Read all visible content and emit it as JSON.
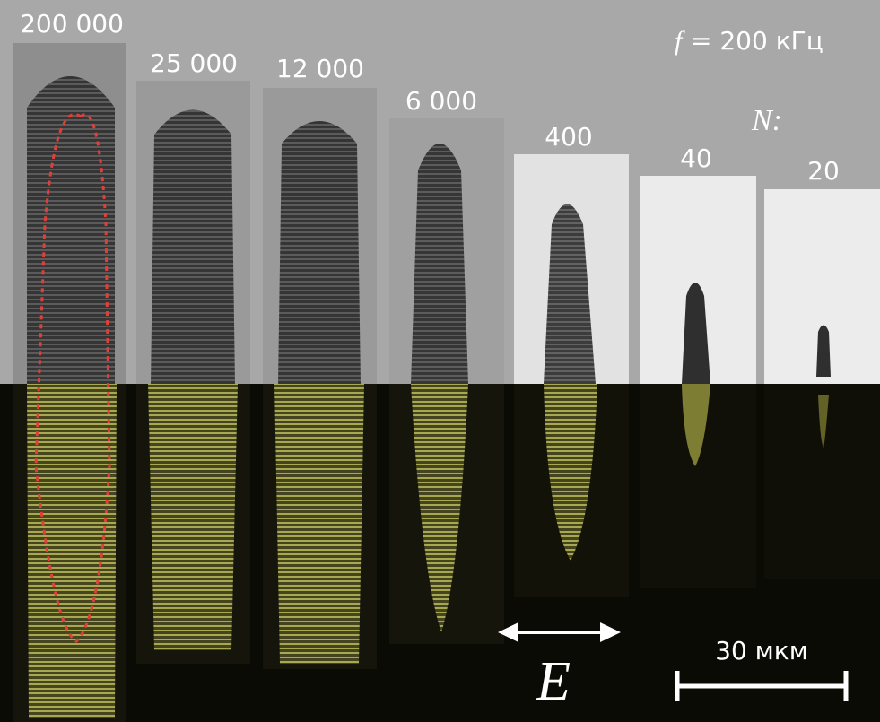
{
  "panels": [
    {
      "label": "200 000"
    },
    {
      "label": "25 000"
    },
    {
      "label": "12 000"
    },
    {
      "label": "6 000"
    },
    {
      "label": "400"
    },
    {
      "label": "40"
    },
    {
      "label": "20"
    }
  ],
  "frequency": {
    "symbol": "f",
    "text": "= 200 кГц"
  },
  "count_symbol": "N:",
  "field_symbol": "E",
  "scale_bar": "30 мкм"
}
